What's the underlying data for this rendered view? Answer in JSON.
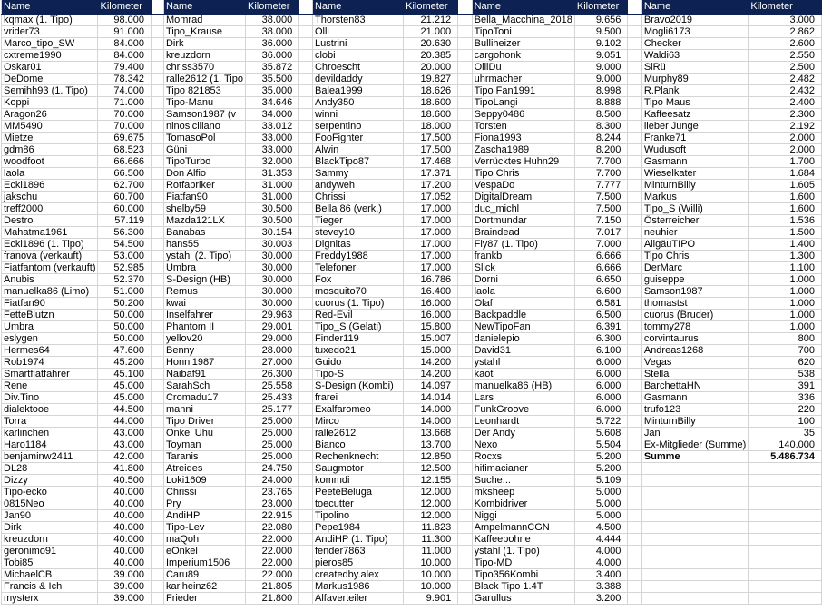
{
  "colors": {
    "header_bg": "#0d2253",
    "header_text": "#ffffff",
    "grid": "#d4d4d4"
  },
  "groups": [
    {
      "header": {
        "name": "Name",
        "km": "Kilometer"
      },
      "rows": [
        [
          "kqmax (1. Tipo)",
          "98.000"
        ],
        [
          "vrider73",
          "91.000"
        ],
        [
          "Marco_tipo_SW",
          "84.000"
        ],
        [
          "cxtreme1990",
          "84.000"
        ],
        [
          "Oskar01",
          "79.400"
        ],
        [
          "DeDome",
          "78.342"
        ],
        [
          "Semihh93 (1. Tipo)",
          "74.000"
        ],
        [
          "Koppi",
          "71.000"
        ],
        [
          "Aragon26",
          "70.000"
        ],
        [
          "MM5490",
          "70.000"
        ],
        [
          "Mietze",
          "69.675"
        ],
        [
          "gdm86",
          "68.523"
        ],
        [
          "woodfoot",
          "66.666"
        ],
        [
          "laola",
          "66.500"
        ],
        [
          "Ecki1896",
          "62.700"
        ],
        [
          "jakschu",
          "60.700"
        ],
        [
          "treff2000",
          "60.000"
        ],
        [
          "Destro",
          "57.119"
        ],
        [
          "Mahatma1961",
          "56.300"
        ],
        [
          "Ecki1896 (1. Tipo)",
          "54.500"
        ],
        [
          "franova (verkauft)",
          "53.000"
        ],
        [
          "Fiatfantom (verkauft)",
          "52.985"
        ],
        [
          "Anubis",
          "52.370"
        ],
        [
          "manuelka86 (Limo)",
          "51.000"
        ],
        [
          "Fiatfan90",
          "50.200"
        ],
        [
          "FetteBlutzn",
          "50.000"
        ],
        [
          "Umbra",
          "50.000"
        ],
        [
          "eslygen",
          "50.000"
        ],
        [
          "Hermes64",
          "47.600"
        ],
        [
          "Rob1974",
          "45.200"
        ],
        [
          "Smartfiatfahrer",
          "45.100"
        ],
        [
          "Rene",
          "45.000"
        ],
        [
          "Div.Tino",
          "45.000"
        ],
        [
          "dialektooe",
          "44.500"
        ],
        [
          "Torra",
          "44.000"
        ],
        [
          "karlinchen",
          "43.000"
        ],
        [
          "Haro1184",
          "43.000"
        ],
        [
          "benjaminw2411",
          "42.000"
        ],
        [
          "DL28",
          "41.800"
        ],
        [
          "Dizzy",
          "40.500"
        ],
        [
          "Tipo-ecko",
          "40.000"
        ],
        [
          "0815Neo",
          "40.000"
        ],
        [
          "Jan90",
          "40.000"
        ],
        [
          "Dirk",
          "40.000"
        ],
        [
          "kreuzdorn",
          "40.000"
        ],
        [
          "geronimo91",
          "40.000"
        ],
        [
          "Tobi85",
          "40.000"
        ],
        [
          "MichaelCB",
          "39.000"
        ],
        [
          "Francis & Ich",
          "39.000"
        ],
        [
          "mysterx",
          "39.000"
        ]
      ]
    },
    {
      "header": {
        "name": "Name",
        "km": "Kilometer"
      },
      "rows": [
        [
          "Momrad",
          "38.000"
        ],
        [
          "Tipo_Krause",
          "38.000"
        ],
        [
          "Dirk",
          "36.000"
        ],
        [
          "kreuzdorn",
          "36.000"
        ],
        [
          "chriss3570",
          "35.872"
        ],
        [
          "ralle2612 (1. Tipo",
          "35.500"
        ],
        [
          "Tipo 821853",
          "35.000"
        ],
        [
          "Tipo-Manu",
          "34.646"
        ],
        [
          "Samson1987 (v",
          "34.000"
        ],
        [
          "ninosiciliano",
          "33.012"
        ],
        [
          "TomasoPol",
          "33.000"
        ],
        [
          "Güni",
          "33.000"
        ],
        [
          "TipoTurbo",
          "32.000"
        ],
        [
          "Don Alfio",
          "31.353"
        ],
        [
          "Rotfabriker",
          "31.000"
        ],
        [
          "Fiatfan90",
          "31.000"
        ],
        [
          "shelby59",
          "30.500"
        ],
        [
          "Mazda121LX",
          "30.500"
        ],
        [
          "Banabas",
          "30.154"
        ],
        [
          "hans55",
          "30.003"
        ],
        [
          "ystahl (2. Tipo)",
          "30.000"
        ],
        [
          "Umbra",
          "30.000"
        ],
        [
          "S-Design (HB)",
          "30.000"
        ],
        [
          "Remus",
          "30.000"
        ],
        [
          "kwai",
          "30.000"
        ],
        [
          "Inselfahrer",
          "29.963"
        ],
        [
          "Phantom II",
          "29.001"
        ],
        [
          "yellov20",
          "29.000"
        ],
        [
          "Benny",
          "28.000"
        ],
        [
          "Honni1987",
          "27.000"
        ],
        [
          "Naibaf91",
          "26.300"
        ],
        [
          "SarahSch",
          "25.558"
        ],
        [
          "Cromadu17",
          "25.433"
        ],
        [
          "manni",
          "25.177"
        ],
        [
          "Tipo Driver",
          "25.000"
        ],
        [
          "Onkel Uhu",
          "25.000"
        ],
        [
          "Toyman",
          "25.000"
        ],
        [
          "Taranis",
          "25.000"
        ],
        [
          "Atreides",
          "24.750"
        ],
        [
          "Loki1609",
          "24.000"
        ],
        [
          "Chrissi",
          "23.765"
        ],
        [
          "Pry",
          "23.000"
        ],
        [
          "AndiHP",
          "22.915"
        ],
        [
          "Tipo-Lev",
          "22.080"
        ],
        [
          "maQoh",
          "22.000"
        ],
        [
          "eOnkel",
          "22.000"
        ],
        [
          "Imperium1506",
          "22.000"
        ],
        [
          "Caru89",
          "22.000"
        ],
        [
          "karlheinz62",
          "21.805"
        ],
        [
          "Frieder",
          "21.800"
        ]
      ]
    },
    {
      "header": {
        "name": "Name",
        "km": "Kilometer"
      },
      "rows": [
        [
          "Thorsten83",
          "21.212"
        ],
        [
          "Olli",
          "21.000"
        ],
        [
          "Lustrini",
          "20.630"
        ],
        [
          "clobi",
          "20.385"
        ],
        [
          "Chroescht",
          "20.000"
        ],
        [
          "devildaddy",
          "19.827"
        ],
        [
          "Balea1999",
          "18.626"
        ],
        [
          "Andy350",
          "18.600"
        ],
        [
          "winni",
          "18.600"
        ],
        [
          "serpentino",
          "18.000"
        ],
        [
          "FooFighter",
          "17.500"
        ],
        [
          "Alwin",
          "17.500"
        ],
        [
          "BlackTipo87",
          "17.468"
        ],
        [
          "Sammy",
          "17.371"
        ],
        [
          "andyweh",
          "17.200"
        ],
        [
          "Chrissi",
          "17.052"
        ],
        [
          "Bella 86 (verk.)",
          "17.000"
        ],
        [
          "Tieger",
          "17.000"
        ],
        [
          "stevey10",
          "17.000"
        ],
        [
          "Dignitas",
          "17.000"
        ],
        [
          "Freddy1988",
          "17.000"
        ],
        [
          "Telefoner",
          "17.000"
        ],
        [
          "Fox",
          "16.786"
        ],
        [
          "mosquito70",
          "16.400"
        ],
        [
          "cuorus (1. Tipo)",
          "16.000"
        ],
        [
          "Red-Evil",
          "16.000"
        ],
        [
          "Tipo_S (Gelati)",
          "15.800"
        ],
        [
          "Finder119",
          "15.007"
        ],
        [
          "tuxedo21",
          "15.000"
        ],
        [
          "Guido",
          "14.200"
        ],
        [
          "Tipo-S",
          "14.200"
        ],
        [
          "S-Design (Kombi)",
          "14.097"
        ],
        [
          "frarei",
          "14.014"
        ],
        [
          "Exalfaromeo",
          "14.000"
        ],
        [
          "Mirco",
          "14.000"
        ],
        [
          "ralle2612",
          "13.668"
        ],
        [
          "Bianco",
          "13.700"
        ],
        [
          "Rechenknecht",
          "12.850"
        ],
        [
          "Saugmotor",
          "12.500"
        ],
        [
          "kommdi",
          "12.155"
        ],
        [
          "PeeteBeluga",
          "12.000"
        ],
        [
          "toecutter",
          "12.000"
        ],
        [
          "Tipolino",
          "12.000"
        ],
        [
          "Pepe1984",
          "11.823"
        ],
        [
          "AndiHP (1. Tipo)",
          "11.300"
        ],
        [
          "fender7863",
          "11.000"
        ],
        [
          "pieros85",
          "10.000"
        ],
        [
          "createdby.alex",
          "10.000"
        ],
        [
          "Markus1986",
          "10.000"
        ],
        [
          "Alfaverteiler",
          "9.901"
        ]
      ]
    },
    {
      "header": {
        "name": "Name",
        "km": "Kilometer"
      },
      "rows": [
        [
          "Bella_Macchina_2018",
          "9.656"
        ],
        [
          "TipoToni",
          "9.500"
        ],
        [
          "Bulliheizer",
          "9.102"
        ],
        [
          "cargohonk",
          "9.051"
        ],
        [
          "OlliDu",
          "9.000"
        ],
        [
          "uhrmacher",
          "9.000"
        ],
        [
          "Tipo Fan1991",
          "8.998"
        ],
        [
          "TipoLangi",
          "8.888"
        ],
        [
          "Seppy0486",
          "8.500"
        ],
        [
          "Torsten",
          "8.300"
        ],
        [
          "Fiona1993",
          "8.244"
        ],
        [
          "Zascha1989",
          "8.200"
        ],
        [
          "Verrücktes Huhn29",
          "7.700"
        ],
        [
          "Tipo Chris",
          "7.700"
        ],
        [
          "VespaDo",
          "7.777"
        ],
        [
          "DigitalDream",
          "7.500"
        ],
        [
          "duc_michl",
          "7.500"
        ],
        [
          "Dortmundar",
          "7.150"
        ],
        [
          "Braindead",
          "7.017"
        ],
        [
          "Fly87 (1. Tipo)",
          "7.000"
        ],
        [
          "frankb",
          "6.666"
        ],
        [
          "Slick",
          "6.666"
        ],
        [
          "Dorni",
          "6.650"
        ],
        [
          "laola",
          "6.600"
        ],
        [
          "Olaf",
          "6.581"
        ],
        [
          "Backpaddle",
          "6.500"
        ],
        [
          "NewTipoFan",
          "6.391"
        ],
        [
          "danielepio",
          "6.300"
        ],
        [
          "David31",
          "6.100"
        ],
        [
          "ystahl",
          "6.000"
        ],
        [
          "kaot",
          "6.000"
        ],
        [
          "manuelka86 (HB)",
          "6.000"
        ],
        [
          "Lars",
          "6.000"
        ],
        [
          "FunkGroove",
          "6.000"
        ],
        [
          "Leonhardt",
          "5.722"
        ],
        [
          "Der Andy",
          "5.608"
        ],
        [
          "Nexo",
          "5.504"
        ],
        [
          "Rocxs",
          "5.200"
        ],
        [
          "hifimacianer",
          "5.200"
        ],
        [
          "Suche...",
          "5.109"
        ],
        [
          "mksheep",
          "5.000"
        ],
        [
          "Kombidriver",
          "5.000"
        ],
        [
          "Niggi",
          "5.000"
        ],
        [
          "AmpelmannCGN",
          "4.500"
        ],
        [
          "Kaffeebohne",
          "4.444"
        ],
        [
          "ystahl (1. Tipo)",
          "4.000"
        ],
        [
          "Tipo-MD",
          "4.000"
        ],
        [
          "Tipo356Kombi",
          "3.400"
        ],
        [
          "Black Tipo 1.4T",
          "3.388"
        ],
        [
          "Garullus",
          "3.200"
        ]
      ]
    },
    {
      "header": {
        "name": "Name",
        "km": "Kilometer"
      },
      "rows": [
        [
          "Bravo2019",
          "3.000"
        ],
        [
          "Mogli6173",
          "2.862"
        ],
        [
          "Checker",
          "2.600"
        ],
        [
          "Waldi63",
          "2.550"
        ],
        [
          "SiRü",
          "2.500"
        ],
        [
          "Murphy89",
          "2.482"
        ],
        [
          "R.Plank",
          "2.432"
        ],
        [
          "Tipo Maus",
          "2.400"
        ],
        [
          "Kaffeesatz",
          "2.300"
        ],
        [
          "lieber Junge",
          "2.192"
        ],
        [
          "Franke71",
          "2.000"
        ],
        [
          "Wudusoft",
          "2.000"
        ],
        [
          "Gasmann",
          "1.700"
        ],
        [
          "Wieselkater",
          "1.684"
        ],
        [
          "MinturnBilly",
          "1.605"
        ],
        [
          "Markus",
          "1.600"
        ],
        [
          "Tipo_S (Willi)",
          "1.600"
        ],
        [
          "Österreicher",
          "1.536"
        ],
        [
          "neuhier",
          "1.500"
        ],
        [
          "AllgäuTIPO",
          "1.400"
        ],
        [
          "Tipo Chris",
          "1.300"
        ],
        [
          "DerMarc",
          "1.100"
        ],
        [
          "guiseppe",
          "1.000"
        ],
        [
          "Samson1987",
          "1.000"
        ],
        [
          "thomastst",
          "1.000"
        ],
        [
          "cuorus (Bruder)",
          "1.000"
        ],
        [
          "tommy278",
          "1.000"
        ],
        [
          "corvintaurus",
          "800"
        ],
        [
          "Andreas1268",
          "700"
        ],
        [
          "Vegas",
          "620"
        ],
        [
          "Stella",
          "538"
        ],
        [
          "BarchettaHN",
          "391"
        ],
        [
          "Gasmann",
          "336"
        ],
        [
          "trufo123",
          "220"
        ],
        [
          "MinturnBilly",
          "100"
        ],
        [
          "Jan",
          "35"
        ],
        [
          "Ex-Mitglieder (Summe)",
          "140.000"
        ]
      ],
      "total": {
        "label": "Summe",
        "value": "5.486.734"
      }
    }
  ]
}
